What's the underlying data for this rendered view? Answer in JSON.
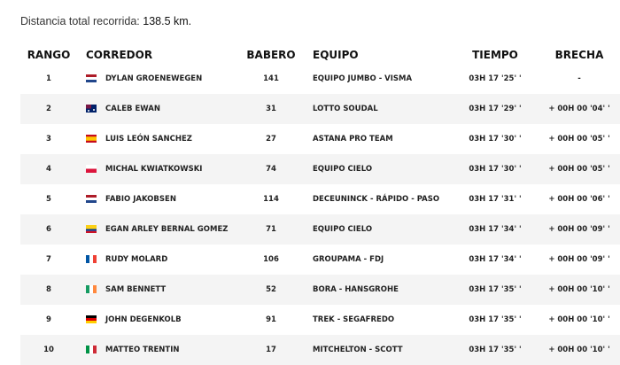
{
  "distance": {
    "label": "Distancia total recorrida:",
    "value": "138.5 km."
  },
  "headers": {
    "rank": "RANGO",
    "rider": "CORREDOR",
    "bib": "BABERO",
    "team": "EQUIPO",
    "time": "TIEMPO",
    "gap": "BRECHA"
  },
  "rows": [
    {
      "rank": "1",
      "flag": "NL",
      "rider": "DYLAN GROENEWEGEN",
      "bib": "141",
      "team": "EQUIPO JUMBO - VISMA",
      "time": "03H 17 '25' '",
      "gap": "-"
    },
    {
      "rank": "2",
      "flag": "AU",
      "rider": "CALEB EWAN",
      "bib": "31",
      "team": "LOTTO SOUDAL",
      "time": "03H 17 '29' '",
      "gap": "+ 00H 00 '04' '"
    },
    {
      "rank": "3",
      "flag": "ES",
      "rider": "LUIS LEÓN SANCHEZ",
      "bib": "27",
      "team": "ASTANA PRO TEAM",
      "time": "03H 17 '30' '",
      "gap": "+ 00H 00 '05' '"
    },
    {
      "rank": "4",
      "flag": "PL",
      "rider": "MICHAL KWIATKOWSKI",
      "bib": "74",
      "team": "EQUIPO CIELO",
      "time": "03H 17 '30' '",
      "gap": "+ 00H 00 '05' '"
    },
    {
      "rank": "5",
      "flag": "NL",
      "rider": "FABIO JAKOBSEN",
      "bib": "114",
      "team": "DECEUNINCK - RÁPIDO - PASO",
      "time": "03H 17 '31' '",
      "gap": "+ 00H 00 '06' '"
    },
    {
      "rank": "6",
      "flag": "CO",
      "rider": "EGAN ARLEY BERNAL GOMEZ",
      "bib": "71",
      "team": "EQUIPO CIELO",
      "time": "03H 17 '34' '",
      "gap": "+ 00H 00 '09' '"
    },
    {
      "rank": "7",
      "flag": "FR",
      "rider": "RUDY MOLARD",
      "bib": "106",
      "team": "GROUPAMA - FDJ",
      "time": "03H 17 '34' '",
      "gap": "+ 00H 00 '09' '"
    },
    {
      "rank": "8",
      "flag": "IE",
      "rider": "SAM BENNETT",
      "bib": "52",
      "team": "BORA - HANSGROHE",
      "time": "03H 17 '35' '",
      "gap": "+ 00H 00 '10' '"
    },
    {
      "rank": "9",
      "flag": "DE",
      "rider": "JOHN DEGENKOLB",
      "bib": "91",
      "team": "TREK - SEGAFREDO",
      "time": "03H 17 '35' '",
      "gap": "+ 00H 00 '10' '"
    },
    {
      "rank": "10",
      "flag": "IT",
      "rider": "MATTEO TRENTIN",
      "bib": "17",
      "team": "MITCHELTON - SCOTT",
      "time": "03H 17 '35' '",
      "gap": "+ 00H 00 '10' '"
    }
  ]
}
